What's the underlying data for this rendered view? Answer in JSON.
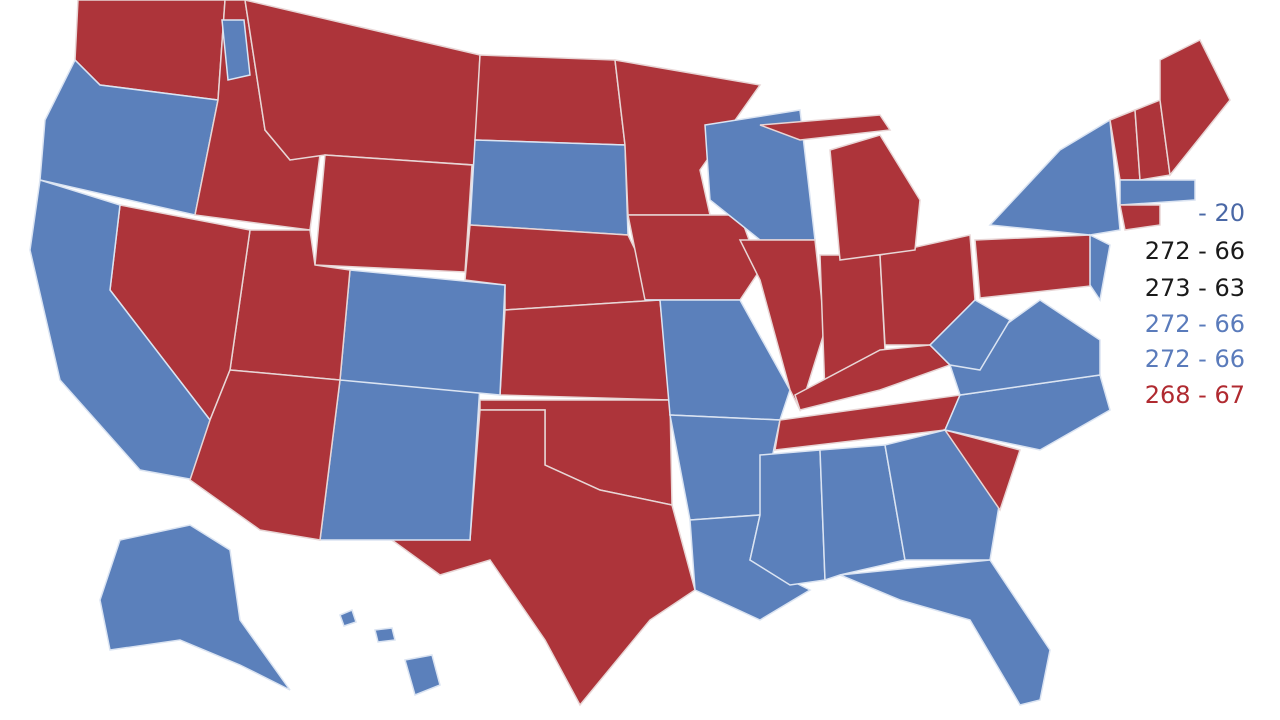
{
  "labels": [
    {
      "text": "- 20",
      "color": "#4a68a6"
    },
    {
      "text": "272 - 66",
      "color": "#1a1a1a"
    },
    {
      "text": "273 - 63",
      "color": "#1a1a1a"
    },
    {
      "text": "272 - 66",
      "color": "#5a7bbb"
    },
    {
      "text": "272 - 66",
      "color": "#5a7bbb"
    },
    {
      "text": "268 - 67",
      "color": "#b02a30"
    }
  ]
}
